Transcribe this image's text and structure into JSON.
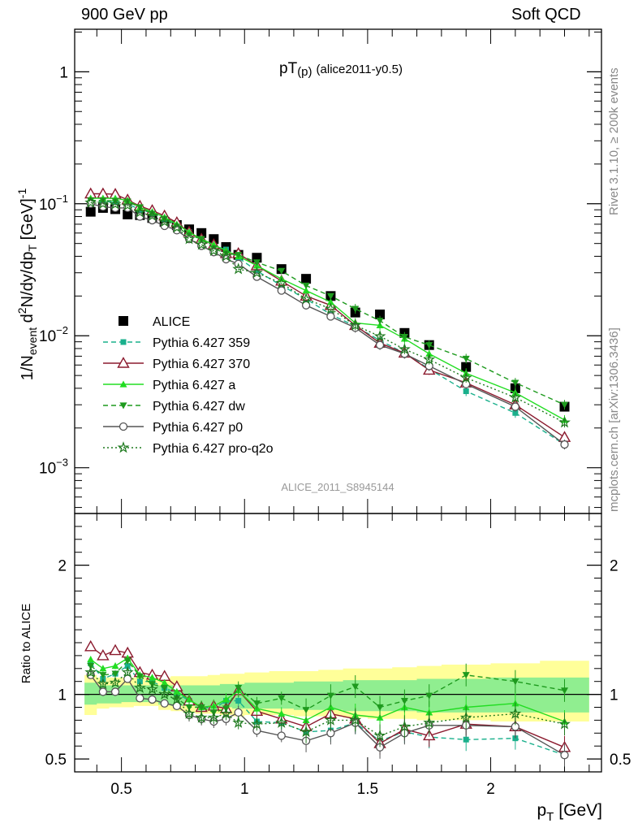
{
  "header": {
    "left_text": "900 GeV pp",
    "right_text": "Soft QCD"
  },
  "side_text": {
    "rivet": "Rivet 3.1.10, ≥ 200k events",
    "mcplots": "mcplots.cern.ch [arXiv:1306.3436]"
  },
  "colors": {
    "ALICE": "#000000",
    "Pythia 6.427 359": "#1ab08c",
    "Pythia 6.427 370": "#8b1a2e",
    "Pythia 6.427 a": "#22dd22",
    "Pythia 6.427 dw": "#1e9a1e",
    "Pythia 6.427 p0": "#555555",
    "Pythia 6.427 pro-q2o": "#1e7a1e",
    "band_inner": "#90ee90",
    "band_outer": "#ffff99"
  },
  "chart_data": [
    {
      "type": "line",
      "panel": "main",
      "title": "pT(p) (alice2011-y0.5)",
      "title_main": "pT",
      "title_sub": "(p)",
      "title_suffix": "(alice2011-y0.5)",
      "ylabel": "1/N_event d²N/dy/dp_T [GeV]⁻¹",
      "ylabel_parts": {
        "a": "1/N",
        "a_sub": "event",
        "b": " d",
        "b_sup": "2",
        "c": "N/dy/dp",
        "c_sub": "T",
        "d": " [GeV]",
        "d_sup": "-1"
      },
      "yscale": "log",
      "ylim": [
        0.00045,
        2.1
      ],
      "xlim": [
        0.31,
        2.45
      ],
      "yticks": [
        {
          "value": 1,
          "label": "1",
          "base": "",
          "exp": ""
        },
        {
          "value": 0.1,
          "label": "",
          "base": "10",
          "exp": "−1"
        },
        {
          "value": 0.01,
          "label": "",
          "base": "10",
          "exp": "−2"
        },
        {
          "value": 0.001,
          "label": "",
          "base": "10",
          "exp": "−3"
        }
      ],
      "watermark": "ALICE_2011_S8945144",
      "legend_position": "middle-left",
      "x": [
        0.375,
        0.425,
        0.475,
        0.525,
        0.575,
        0.625,
        0.675,
        0.725,
        0.775,
        0.825,
        0.875,
        0.925,
        0.975,
        1.05,
        1.15,
        1.25,
        1.35,
        1.45,
        1.55,
        1.65,
        1.75,
        1.9,
        2.1,
        2.3
      ],
      "series": [
        {
          "name": "ALICE",
          "marker": "square-filled",
          "line": "none",
          "values": [
            0.087,
            0.093,
            0.091,
            0.083,
            0.082,
            0.078,
            0.073,
            0.069,
            0.064,
            0.06,
            0.054,
            0.047,
            0.041,
            0.039,
            0.032,
            0.027,
            0.02,
            0.015,
            0.0145,
            0.0105,
            0.0085,
            0.0058,
            0.004,
            0.0029
          ]
        },
        {
          "name": "Pythia 6.427 359",
          "marker": "square-small",
          "line": "dashed",
          "values": [
            0.106,
            0.104,
            0.103,
            0.1,
            0.09,
            0.085,
            0.077,
            0.07,
            0.061,
            0.054,
            0.048,
            0.045,
            0.039,
            0.031,
            0.024,
            0.019,
            0.0145,
            0.0118,
            0.0092,
            0.0074,
            0.0056,
            0.0038,
            0.0026,
            0.0015
          ]
        },
        {
          "name": "Pythia 6.427 370",
          "marker": "triangle-open",
          "line": "solid",
          "values": [
            0.119,
            0.119,
            0.118,
            0.107,
            0.096,
            0.089,
            0.081,
            0.072,
            0.061,
            0.054,
            0.049,
            0.042,
            0.042,
            0.034,
            0.026,
            0.02,
            0.017,
            0.012,
            0.0088,
            0.0074,
            0.0055,
            0.0044,
            0.003,
            0.0017
          ]
        },
        {
          "name": "Pythia 6.427 a",
          "marker": "triangle-up-filled",
          "line": "solid",
          "values": [
            0.11,
            0.11,
            0.11,
            0.106,
            0.094,
            0.087,
            0.079,
            0.07,
            0.061,
            0.054,
            0.049,
            0.044,
            0.04,
            0.034,
            0.027,
            0.022,
            0.018,
            0.0125,
            0.012,
            0.0095,
            0.0073,
            0.0052,
            0.0037,
            0.0023
          ]
        },
        {
          "name": "Pythia 6.427 dw",
          "marker": "triangle-down-filled",
          "line": "dashed",
          "values": [
            0.106,
            0.106,
            0.105,
            0.104,
            0.094,
            0.084,
            0.077,
            0.067,
            0.058,
            0.054,
            0.046,
            0.042,
            0.041,
            0.036,
            0.031,
            0.024,
            0.02,
            0.016,
            0.013,
            0.0098,
            0.0085,
            0.0067,
            0.0044,
            0.003
          ]
        },
        {
          "name": "Pythia 6.427 p0",
          "marker": "circle-open",
          "line": "solid",
          "values": [
            0.1,
            0.095,
            0.093,
            0.093,
            0.08,
            0.075,
            0.068,
            0.063,
            0.054,
            0.048,
            0.043,
            0.038,
            0.035,
            0.028,
            0.022,
            0.017,
            0.014,
            0.0115,
            0.0085,
            0.0073,
            0.0059,
            0.0043,
            0.0029,
            0.0015
          ]
        },
        {
          "name": "Pythia 6.427 pro-q2o",
          "marker": "star-open",
          "line": "dotted",
          "values": [
            0.102,
            0.1,
            0.099,
            0.097,
            0.086,
            0.081,
            0.073,
            0.066,
            0.054,
            0.049,
            0.044,
            0.04,
            0.032,
            0.03,
            0.025,
            0.019,
            0.016,
            0.012,
            0.0099,
            0.0079,
            0.0066,
            0.0048,
            0.0034,
            0.0022
          ]
        }
      ]
    },
    {
      "type": "line",
      "panel": "ratio",
      "title": "",
      "xlabel": "p_T [GeV]",
      "xlabel_main": "p",
      "xlabel_sub": "T",
      "xlabel_unit": "[GeV]",
      "ylabel": "Ratio to ALICE",
      "ylim": [
        0.4,
        2.4
      ],
      "xlim": [
        0.31,
        2.45
      ],
      "yticks": [
        0.5,
        1,
        2
      ],
      "ytick_labels": [
        "0.5",
        "1",
        "2"
      ],
      "xticks": [
        0.5,
        1,
        1.5,
        2
      ],
      "xtick_labels": [
        "0.5",
        "1",
        "1.5",
        "2"
      ],
      "reference_line": 1,
      "band_inner": {
        "lower": [
          0.92,
          0.93,
          0.93,
          0.94,
          0.94,
          0.94,
          0.92,
          0.91,
          0.91,
          0.9,
          0.9,
          0.9,
          0.89,
          0.89,
          0.89,
          0.88,
          0.88,
          0.87,
          0.87,
          0.87,
          0.86,
          0.86,
          0.86,
          0.86
        ],
        "upper": [
          1.09,
          1.07,
          1.07,
          1.07,
          1.07,
          1.07,
          1.07,
          1.07,
          1.07,
          1.07,
          1.07,
          1.08,
          1.08,
          1.09,
          1.09,
          1.1,
          1.1,
          1.11,
          1.11,
          1.11,
          1.12,
          1.12,
          1.13,
          1.13
        ]
      },
      "band_outer": {
        "lower": [
          0.84,
          0.89,
          0.9,
          0.9,
          0.91,
          0.91,
          0.88,
          0.87,
          0.86,
          0.85,
          0.85,
          0.84,
          0.83,
          0.84,
          0.84,
          0.83,
          0.83,
          0.82,
          0.81,
          0.81,
          0.8,
          0.8,
          0.79,
          0.79
        ],
        "upper": [
          1.15,
          1.13,
          1.13,
          1.13,
          1.13,
          1.13,
          1.13,
          1.14,
          1.14,
          1.14,
          1.15,
          1.16,
          1.16,
          1.17,
          1.18,
          1.18,
          1.19,
          1.2,
          1.2,
          1.21,
          1.22,
          1.23,
          1.24,
          1.26
        ]
      },
      "series": [
        {
          "name": "Pythia 6.427 359",
          "values": [
            1.24,
            1.12,
            1.16,
            1.22,
            1.1,
            1.1,
            1.05,
            1.01,
            0.95,
            0.9,
            0.89,
            0.95,
            0.95,
            0.79,
            0.78,
            0.71,
            0.72,
            0.78,
            0.64,
            0.71,
            0.67,
            0.65,
            0.66,
            0.53
          ]
        },
        {
          "name": "Pythia 6.427 370",
          "values": [
            1.37,
            1.3,
            1.34,
            1.32,
            1.17,
            1.15,
            1.14,
            1.06,
            0.95,
            0.9,
            0.91,
            0.89,
            1.03,
            0.87,
            0.81,
            0.75,
            0.85,
            0.81,
            0.62,
            0.73,
            0.68,
            0.77,
            0.75,
            0.59
          ]
        },
        {
          "name": "Pythia 6.427 a",
          "values": [
            1.27,
            1.2,
            1.22,
            1.28,
            1.15,
            1.13,
            1.09,
            1.02,
            0.96,
            0.9,
            0.91,
            0.96,
            1.03,
            0.89,
            0.85,
            0.8,
            0.9,
            0.84,
            0.82,
            0.9,
            0.86,
            0.9,
            0.93,
            0.79
          ]
        },
        {
          "name": "Pythia 6.427 dw",
          "values": [
            1.22,
            1.15,
            1.16,
            1.26,
            1.14,
            1.08,
            1.05,
            0.97,
            0.9,
            0.9,
            0.86,
            0.89,
            1.05,
            0.93,
            0.97,
            0.88,
            0.99,
            1.06,
            0.9,
            0.95,
            0.99,
            1.15,
            1.1,
            1.03
          ]
        },
        {
          "name": "Pythia 6.427 p0",
          "values": [
            1.15,
            1.02,
            1.02,
            1.12,
            0.97,
            0.96,
            0.93,
            0.91,
            0.84,
            0.81,
            0.79,
            0.81,
            0.86,
            0.72,
            0.68,
            0.64,
            0.7,
            0.78,
            0.59,
            0.7,
            0.76,
            0.76,
            0.75,
            0.53
          ]
        },
        {
          "name": "Pythia 6.427 pro-q2o",
          "values": [
            1.17,
            1.08,
            1.09,
            1.17,
            1.05,
            1.04,
            1.0,
            0.96,
            0.85,
            0.82,
            0.82,
            0.85,
            0.78,
            0.77,
            0.78,
            0.71,
            0.8,
            0.8,
            0.68,
            0.75,
            0.78,
            0.82,
            0.85,
            0.77
          ]
        }
      ]
    }
  ]
}
